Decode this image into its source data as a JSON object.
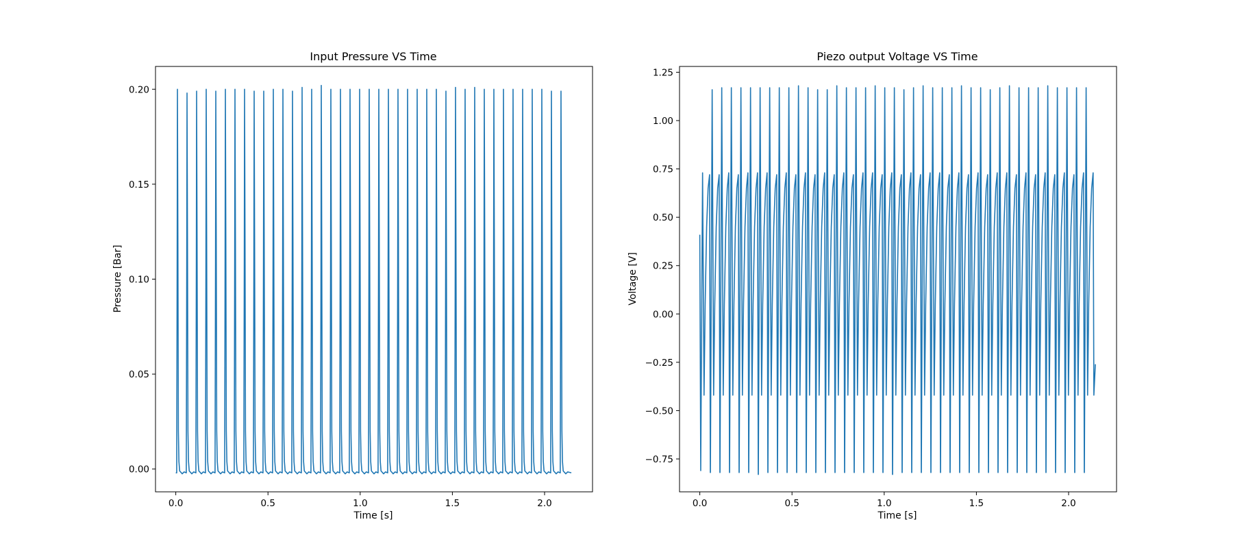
{
  "line_color": "#1f77b4",
  "chart_data": [
    {
      "type": "line",
      "title": "Input Pressure VS Time",
      "xlabel": "Time [s]",
      "ylabel": "Pressure [Bar]",
      "xlim": [
        -0.11,
        2.26
      ],
      "ylim": [
        -0.012,
        0.212
      ],
      "xticks": [
        "0.0",
        "0.5",
        "1.0",
        "1.5",
        "2.0"
      ],
      "yticks": [
        "0.00",
        "0.05",
        "0.10",
        "0.15",
        "0.20"
      ],
      "grid": false,
      "series": [
        {
          "shape": "pulse",
          "t_start": 0.0,
          "t_end": 2.145,
          "pulse_starts": [
            0.005,
            0.057,
            0.109,
            0.161,
            0.213,
            0.265,
            0.317,
            0.369,
            0.421,
            0.473,
            0.525,
            0.577,
            0.629,
            0.681,
            0.733,
            0.785,
            0.837,
            0.889,
            0.941,
            0.993,
            1.045,
            1.097,
            1.149,
            1.201,
            1.253,
            1.305,
            1.357,
            1.409,
            1.461,
            1.513,
            1.565,
            1.617,
            1.669,
            1.721,
            1.773,
            1.825,
            1.877,
            1.929,
            1.981,
            2.033,
            2.085
          ],
          "peaks": [
            0.2,
            0.198,
            0.199,
            0.2,
            0.199,
            0.2,
            0.2,
            0.2,
            0.199,
            0.199,
            0.2,
            0.2,
            0.199,
            0.201,
            0.2,
            0.202,
            0.2,
            0.2,
            0.2,
            0.2,
            0.2,
            0.2,
            0.2,
            0.2,
            0.2,
            0.2,
            0.2,
            0.2,
            0.199,
            0.201,
            0.2,
            0.201,
            0.2,
            0.2,
            0.2,
            0.2,
            0.2,
            0.2,
            0.2,
            0.199,
            0.199
          ],
          "baseline": -0.002
        }
      ]
    },
    {
      "type": "line",
      "title": "Piezo output Voltage VS Time",
      "xlabel": "Time [s]",
      "ylabel": "Voltage [V]",
      "xlim": [
        -0.11,
        2.26
      ],
      "ylim": [
        -0.92,
        1.28
      ],
      "xticks": [
        "0.0",
        "0.5",
        "1.0",
        "1.5",
        "2.0"
      ],
      "yticks": [
        "−0.75",
        "−0.50",
        "−0.25",
        "0.00",
        "0.25",
        "0.50",
        "0.75",
        "1.00",
        "1.25"
      ],
      "grid": false,
      "series": [
        {
          "shape": "sawtooth",
          "t_start": 0.0,
          "t_end": 2.145,
          "start_value": 0.41,
          "end_value": -0.26,
          "pulse_starts": [
            0.005,
            0.057,
            0.109,
            0.161,
            0.213,
            0.265,
            0.317,
            0.369,
            0.421,
            0.473,
            0.525,
            0.577,
            0.629,
            0.681,
            0.733,
            0.785,
            0.837,
            0.889,
            0.941,
            0.993,
            1.045,
            1.097,
            1.149,
            1.201,
            1.253,
            1.305,
            1.357,
            1.409,
            1.461,
            1.513,
            1.565,
            1.617,
            1.669,
            1.721,
            1.773,
            1.825,
            1.877,
            1.929,
            1.981,
            2.033,
            2.085
          ],
          "high_peaks": [
            0.73,
            1.16,
            1.17,
            1.17,
            1.17,
            1.17,
            1.17,
            1.17,
            1.17,
            1.17,
            1.18,
            1.17,
            1.16,
            1.16,
            1.18,
            1.17,
            1.17,
            1.17,
            1.18,
            1.17,
            1.17,
            1.16,
            1.17,
            1.18,
            1.17,
            1.17,
            1.17,
            1.18,
            1.17,
            1.17,
            1.16,
            1.17,
            1.18,
            1.17,
            1.17,
            1.17,
            1.18,
            1.17,
            1.17,
            1.17,
            1.17
          ],
          "mid_peaks": [
            0.72,
            0.72,
            0.73,
            0.72,
            0.73,
            0.73,
            0.73,
            0.72,
            0.73,
            0.72,
            0.73,
            0.72,
            0.73,
            0.72,
            0.73,
            0.72,
            0.73,
            0.73,
            0.72,
            0.73,
            0.72,
            0.73,
            0.72,
            0.73,
            0.73,
            0.72,
            0.73,
            0.72,
            0.73,
            0.72,
            0.73,
            0.73,
            0.72,
            0.73,
            0.72,
            0.73,
            0.72,
            0.73,
            0.72,
            0.73,
            0.73
          ],
          "troughs": [
            -0.81,
            -0.82,
            -0.82,
            -0.82,
            -0.82,
            -0.82,
            -0.83,
            -0.82,
            -0.82,
            -0.82,
            -0.82,
            -0.82,
            -0.82,
            -0.82,
            -0.82,
            -0.82,
            -0.82,
            -0.82,
            -0.82,
            -0.82,
            -0.83,
            -0.82,
            -0.82,
            -0.82,
            -0.82,
            -0.82,
            -0.82,
            -0.82,
            -0.82,
            -0.82,
            -0.82,
            -0.82,
            -0.82,
            -0.82,
            -0.82,
            -0.82,
            -0.82,
            -0.82,
            -0.82,
            -0.82,
            -0.82
          ],
          "rebound": -0.42
        }
      ]
    }
  ]
}
